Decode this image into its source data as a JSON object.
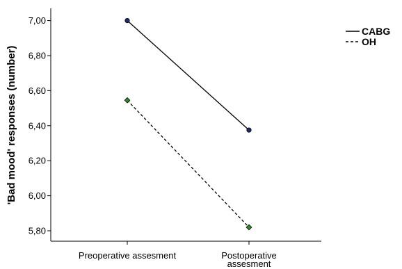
{
  "chart_data": {
    "type": "line",
    "categories": [
      "Preoperative assesment",
      "Postoperative assesment"
    ],
    "category_label_lines": [
      [
        "Preoperative assesment"
      ],
      [
        "Postoperative",
        "assesment"
      ]
    ],
    "series": [
      {
        "name": "CABG",
        "values": [
          7.0,
          6.375
        ],
        "line_style": "solid",
        "marker": "circle",
        "marker_color": "#1f2a6b"
      },
      {
        "name": "OH",
        "values": [
          6.545,
          5.82
        ],
        "line_style": "dashed",
        "marker": "diamond",
        "marker_color": "#2e8b2e"
      }
    ],
    "ylabel": "'Bad mood' responses (number)",
    "xlabel": "",
    "ylim": [
      5.75,
      7.05
    ],
    "yticks": [
      5.8,
      6.0,
      6.2,
      6.4,
      6.6,
      6.8,
      7.0
    ],
    "ytick_labels": [
      "5,80",
      "6,00",
      "6,20",
      "6,40",
      "6,60",
      "6,80",
      "7,00"
    ],
    "grid": false,
    "legend_position": "top-right"
  }
}
